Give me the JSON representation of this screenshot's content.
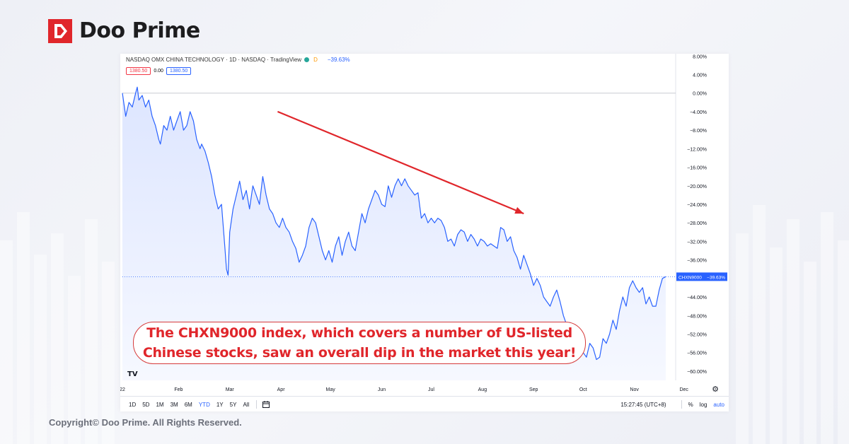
{
  "brand": {
    "name": "Doo Prime",
    "logo_icon": "doo-prime-logo-icon"
  },
  "chart_header": {
    "title": "NASDAQ OMX CHINA TECHNOLOGY · 1D · NASDAQ · TradingView",
    "badge_letter": "D",
    "change": "−39.63%",
    "price_red": "1380.50",
    "price_zero": "0.00",
    "price_blue": "1380.50"
  },
  "price_label": {
    "symbol": "CHXN9000",
    "value": "−39.63%"
  },
  "toolbar": {
    "ranges": [
      "1D",
      "5D",
      "1M",
      "3M",
      "6M",
      "YTD",
      "1Y",
      "5Y",
      "All"
    ],
    "active": "YTD",
    "time": "15:27:45 (UTC+8)",
    "percent": "%",
    "log": "log",
    "auto": "auto"
  },
  "tv_logo": "TV",
  "callout": "The CHXN9000 index,  which covers a number of US-listed\nChinese stocks, saw an overall dip in the market this year!",
  "copyright": "Copyright© Doo Prime. All Rights Reserved.",
  "colors": {
    "line": "#2962ff",
    "fill": "#dbe4ff",
    "arrow": "#e0262b",
    "brand_red": "#e0262b"
  },
  "chart_data": {
    "type": "area",
    "title": "NASDAQ OMX CHINA TECHNOLOGY",
    "y_unit": "%",
    "ylim": [
      -62,
      8.5
    ],
    "y_ticks": [
      8,
      4,
      0,
      -4,
      -8,
      -12,
      -16,
      -20,
      -24,
      -28,
      -32,
      -36,
      -40,
      -44,
      -48,
      -52,
      -56,
      -60
    ],
    "y_tick_labels": [
      "8.00%",
      "4.00%",
      "0.00%",
      "−4.00%",
      "−8.00%",
      "−12.00%",
      "−16.00%",
      "−20.00%",
      "−24.00%",
      "−28.00%",
      "−32.00%",
      "−36.00%",
      "−40.00%",
      "−44.00%",
      "−48.00%",
      "−52.00%",
      "−56.00%",
      "−60.00%"
    ],
    "x_tick_labels": [
      "22",
      "Feb",
      "Mar",
      "Apr",
      "May",
      "Jun",
      "Jul",
      "Aug",
      "Sep",
      "Oct",
      "Nov",
      "Dec"
    ],
    "x_tick_days": [
      0,
      34,
      65,
      96,
      126,
      157,
      187,
      218,
      249,
      279,
      310,
      340
    ],
    "last_value": -39.63,
    "series": [
      {
        "points": [
          [
            0,
            0
          ],
          [
            2,
            -5
          ],
          [
            4,
            -2
          ],
          [
            6,
            -3
          ],
          [
            8,
            0
          ],
          [
            9,
            1.3
          ],
          [
            10,
            -1.5
          ],
          [
            12,
            -0.5
          ],
          [
            14,
            -3
          ],
          [
            16,
            -1.5
          ],
          [
            18,
            -5
          ],
          [
            20,
            -7
          ],
          [
            22,
            -10
          ],
          [
            23,
            -11
          ],
          [
            25,
            -7
          ],
          [
            27,
            -8
          ],
          [
            29,
            -5
          ],
          [
            31,
            -8
          ],
          [
            33,
            -6
          ],
          [
            35,
            -4
          ],
          [
            37,
            -8
          ],
          [
            39,
            -7
          ],
          [
            41,
            -4
          ],
          [
            43,
            -6
          ],
          [
            45,
            -10
          ],
          [
            47,
            -12
          ],
          [
            48,
            -11
          ],
          [
            50,
            -12.5
          ],
          [
            52,
            -15
          ],
          [
            54,
            -18
          ],
          [
            56,
            -22
          ],
          [
            58,
            -25
          ],
          [
            60,
            -24
          ],
          [
            62,
            -33
          ],
          [
            63,
            -38
          ],
          [
            64,
            -39.3
          ],
          [
            65,
            -30
          ],
          [
            67,
            -25
          ],
          [
            69,
            -22
          ],
          [
            71,
            -19
          ],
          [
            73,
            -23
          ],
          [
            75,
            -21
          ],
          [
            77,
            -25
          ],
          [
            79,
            -20
          ],
          [
            81,
            -22
          ],
          [
            83,
            -24
          ],
          [
            85,
            -18
          ],
          [
            87,
            -22
          ],
          [
            89,
            -25
          ],
          [
            91,
            -26
          ],
          [
            93,
            -28
          ],
          [
            95,
            -29
          ],
          [
            97,
            -27
          ],
          [
            99,
            -29
          ],
          [
            101,
            -30
          ],
          [
            103,
            -32
          ],
          [
            105,
            -33.5
          ],
          [
            107,
            -36.5
          ],
          [
            109,
            -35
          ],
          [
            111,
            -33
          ],
          [
            113,
            -29
          ],
          [
            115,
            -27
          ],
          [
            117,
            -28
          ],
          [
            119,
            -31
          ],
          [
            121,
            -34
          ],
          [
            123,
            -36
          ],
          [
            125,
            -34
          ],
          [
            127,
            -36.5
          ],
          [
            129,
            -33
          ],
          [
            131,
            -31
          ],
          [
            133,
            -35
          ],
          [
            135,
            -32
          ],
          [
            137,
            -30
          ],
          [
            139,
            -33
          ],
          [
            141,
            -34
          ],
          [
            143,
            -30
          ],
          [
            145,
            -26
          ],
          [
            147,
            -28
          ],
          [
            149,
            -25
          ],
          [
            151,
            -23
          ],
          [
            153,
            -21
          ],
          [
            155,
            -22
          ],
          [
            157,
            -24
          ],
          [
            159,
            -24.5
          ],
          [
            161,
            -20
          ],
          [
            163,
            -22.5
          ],
          [
            165,
            -20
          ],
          [
            167,
            -18.5
          ],
          [
            169,
            -20
          ],
          [
            171,
            -18.5
          ],
          [
            173,
            -20
          ],
          [
            175,
            -21
          ],
          [
            177,
            -22
          ],
          [
            179,
            -21.5
          ],
          [
            181,
            -27
          ],
          [
            183,
            -26
          ],
          [
            185,
            -28
          ],
          [
            187,
            -27
          ],
          [
            189,
            -28
          ],
          [
            191,
            -27
          ],
          [
            193,
            -27.5
          ],
          [
            195,
            -29
          ],
          [
            197,
            -32
          ],
          [
            199,
            -31.5
          ],
          [
            201,
            -33
          ],
          [
            203,
            -30.5
          ],
          [
            205,
            -29.5
          ],
          [
            207,
            -30
          ],
          [
            209,
            -32
          ],
          [
            211,
            -30.5
          ],
          [
            213,
            -31.5
          ],
          [
            215,
            -33
          ],
          [
            217,
            -31.5
          ],
          [
            219,
            -32
          ],
          [
            221,
            -33
          ],
          [
            223,
            -32.5
          ],
          [
            225,
            -33
          ],
          [
            227,
            -33.5
          ],
          [
            229,
            -29
          ],
          [
            231,
            -29.5
          ],
          [
            233,
            -32
          ],
          [
            235,
            -31
          ],
          [
            237,
            -34
          ],
          [
            239,
            -35.5
          ],
          [
            241,
            -38
          ],
          [
            243,
            -35
          ],
          [
            245,
            -37
          ],
          [
            247,
            -39
          ],
          [
            249,
            -41.5
          ],
          [
            251,
            -40
          ],
          [
            253,
            -41.5
          ],
          [
            255,
            -44
          ],
          [
            257,
            -45
          ],
          [
            259,
            -46
          ],
          [
            261,
            -44
          ],
          [
            263,
            -42.5
          ],
          [
            265,
            -45
          ],
          [
            267,
            -48
          ],
          [
            269,
            -50
          ],
          [
            271,
            -49.5
          ],
          [
            273,
            -52
          ],
          [
            275,
            -51
          ],
          [
            277,
            -52.5
          ],
          [
            279,
            -56
          ],
          [
            281,
            -57
          ],
          [
            283,
            -54
          ],
          [
            285,
            -55
          ],
          [
            287,
            -57.5
          ],
          [
            289,
            -57
          ],
          [
            291,
            -53
          ],
          [
            293,
            -54
          ],
          [
            295,
            -52
          ],
          [
            297,
            -49
          ],
          [
            299,
            -51
          ],
          [
            301,
            -47
          ],
          [
            303,
            -44
          ],
          [
            305,
            -46
          ],
          [
            307,
            -42
          ],
          [
            309,
            -40.5
          ],
          [
            311,
            -42
          ],
          [
            313,
            -43
          ],
          [
            315,
            -42
          ],
          [
            317,
            -45.5
          ],
          [
            319,
            -44
          ],
          [
            321,
            -46
          ],
          [
            323,
            -46
          ],
          [
            325,
            -42.5
          ],
          [
            327,
            -40
          ],
          [
            329,
            -39.63
          ]
        ]
      }
    ],
    "annotation": {
      "type": "arrow",
      "from": [
        94,
        -4
      ],
      "to": [
        243,
        -26
      ]
    },
    "grid": false,
    "legend": "none"
  }
}
